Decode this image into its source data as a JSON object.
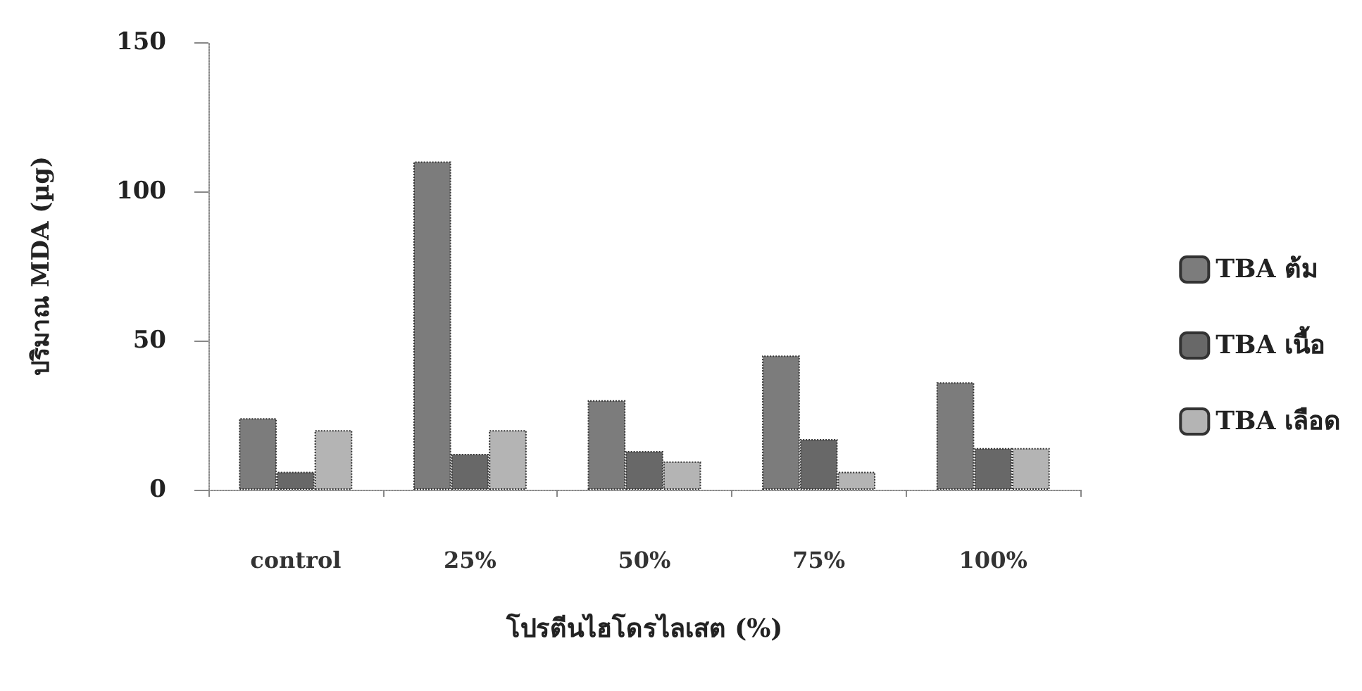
{
  "chart_data": {
    "type": "bar",
    "xlabel": "โปรตีนไฮโดรไลเสต (%)",
    "ylabel": "ปริมาณ MDA (µg)",
    "categories": [
      "control",
      "25%",
      "50%",
      "75%",
      "100%"
    ],
    "series": [
      {
        "name": "TBA ต้ม",
        "color": "#7c7c7c",
        "values": [
          24,
          110,
          30,
          45,
          36
        ]
      },
      {
        "name": "TBA เนื้อ",
        "color": "#686868",
        "values": [
          6,
          12,
          13,
          17,
          14
        ]
      },
      {
        "name": "TBA เลือด",
        "color": "#b4b4b4",
        "values": [
          20,
          20,
          9.5,
          6,
          14
        ]
      }
    ],
    "ylim": [
      0,
      150
    ],
    "yticks": [
      0,
      50,
      100,
      150
    ],
    "grid": false,
    "legend": "right"
  }
}
